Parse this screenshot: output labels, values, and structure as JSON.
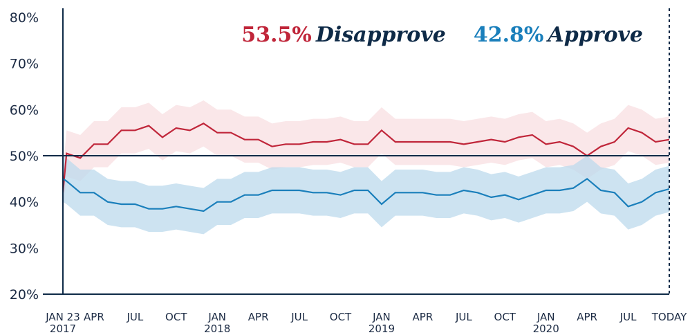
{
  "chart_data": {
    "type": "line",
    "x": [
      "2017-01-23",
      "2017-02",
      "2017-03",
      "2017-04",
      "2017-05",
      "2017-06",
      "2017-07",
      "2017-08",
      "2017-09",
      "2017-10",
      "2017-11",
      "2017-12",
      "2018-01",
      "2018-02",
      "2018-03",
      "2018-04",
      "2018-05",
      "2018-06",
      "2018-07",
      "2018-08",
      "2018-09",
      "2018-10",
      "2018-11",
      "2018-12",
      "2019-01",
      "2019-02",
      "2019-03",
      "2019-04",
      "2019-05",
      "2019-06",
      "2019-07",
      "2019-08",
      "2019-09",
      "2019-10",
      "2019-11",
      "2019-12",
      "2020-01",
      "2020-02",
      "2020-03",
      "2020-04",
      "2020-05",
      "2020-06",
      "2020-07",
      "2020-08",
      "2020-09",
      "2020-10"
    ],
    "series": [
      {
        "name": "Disapprove",
        "color": "#c0263a",
        "band_color": "#f8dfe2",
        "error": 5,
        "values": [
          42,
          50.5,
          49.5,
          52.5,
          52.5,
          55.5,
          55.5,
          56.5,
          54,
          56,
          55.5,
          57,
          55,
          55,
          53.5,
          53.5,
          52,
          52.5,
          52.5,
          53,
          53,
          53.5,
          52.5,
          52.5,
          55.5,
          53,
          53,
          53,
          53,
          53,
          52.5,
          53,
          53.5,
          53,
          54,
          54.5,
          52.5,
          53,
          52,
          50,
          52,
          53,
          56,
          55,
          53,
          53.5
        ],
        "value_labels": [
          null,
          null,
          null,
          null,
          null,
          null,
          null,
          null,
          null,
          null,
          null,
          null,
          null,
          null,
          null,
          null,
          null,
          null,
          null,
          null,
          null,
          null,
          null,
          null,
          null,
          null,
          null,
          null,
          null,
          null,
          null,
          null,
          null,
          null,
          null,
          null,
          null,
          null,
          null,
          null,
          null,
          null,
          null,
          null,
          null,
          "53.5%"
        ]
      },
      {
        "name": "Approve",
        "color": "#1a7fbb",
        "band_color": "#bcd9ec",
        "error": 5,
        "values": [
          45,
          44.5,
          42,
          42,
          40,
          39.5,
          39.5,
          38.5,
          38.5,
          39,
          38.5,
          38,
          40,
          40,
          41.5,
          41.5,
          42.5,
          42.5,
          42.5,
          42,
          42,
          41.5,
          42.5,
          42.5,
          39.5,
          42,
          42,
          42,
          41.5,
          41.5,
          42.5,
          42,
          41,
          41.5,
          40.5,
          41.5,
          42.5,
          42.5,
          43,
          45,
          42.5,
          42,
          39,
          40,
          42,
          42.8
        ],
        "value_labels": [
          null,
          null,
          null,
          null,
          null,
          null,
          null,
          null,
          null,
          null,
          null,
          null,
          null,
          null,
          null,
          null,
          null,
          null,
          null,
          null,
          null,
          null,
          null,
          null,
          null,
          null,
          null,
          null,
          null,
          null,
          null,
          null,
          null,
          null,
          null,
          null,
          null,
          null,
          null,
          null,
          null,
          null,
          null,
          null,
          null,
          "42.8%"
        ]
      }
    ],
    "xlim": [
      "2017-01-23",
      "2020-10"
    ],
    "xticks": [
      {
        "value": "2017-01-23",
        "label": "JAN 23\n2017"
      },
      {
        "value": "2017-04",
        "label": "APR"
      },
      {
        "value": "2017-07",
        "label": "JUL"
      },
      {
        "value": "2017-10",
        "label": "OCT"
      },
      {
        "value": "2018-01",
        "label": "JAN\n2018"
      },
      {
        "value": "2018-04",
        "label": "APR"
      },
      {
        "value": "2018-07",
        "label": "JUL"
      },
      {
        "value": "2018-10",
        "label": "OCT"
      },
      {
        "value": "2019-01",
        "label": "JAN\n2019"
      },
      {
        "value": "2019-04",
        "label": "APR"
      },
      {
        "value": "2019-07",
        "label": "JUL"
      },
      {
        "value": "2019-10",
        "label": "OCT"
      },
      {
        "value": "2020-01",
        "label": "JAN\n2020"
      },
      {
        "value": "2020-04",
        "label": "APR"
      },
      {
        "value": "2020-07",
        "label": "JUL"
      },
      {
        "value": "2020-10",
        "label": "TODAY"
      }
    ],
    "ylim": [
      20,
      80
    ],
    "yticks": [
      {
        "value": 20,
        "label": "20%"
      },
      {
        "value": 30,
        "label": "30%"
      },
      {
        "value": 40,
        "label": "40%"
      },
      {
        "value": 50,
        "label": "50%"
      },
      {
        "value": 60,
        "label": "60%"
      },
      {
        "value": 70,
        "label": "70%"
      },
      {
        "value": 80,
        "label": "80%"
      }
    ],
    "reference_line": 50,
    "grid": true
  }
}
